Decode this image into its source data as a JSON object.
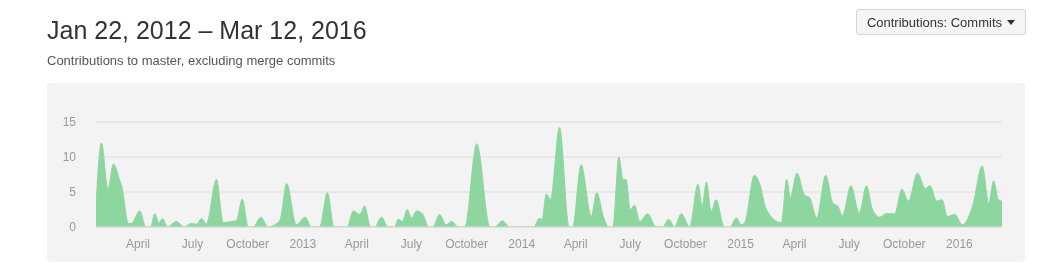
{
  "chart_data": {
    "type": "area",
    "title": "Jan 22, 2012 – Mar 12, 2016",
    "subtitle": "Contributions to master, excluding merge commits",
    "annotations": [
      "Contributions: Commits"
    ],
    "x": [
      "2012-01-22",
      "2012-01-31",
      "2012-02-11",
      "2012-02-20",
      "2012-03-01",
      "2012-03-05",
      "2012-03-16",
      "2012-03-21",
      "2012-04-04",
      "2012-04-14",
      "2012-04-22",
      "2012-04-29",
      "2012-05-06",
      "2012-05-12",
      "2012-05-20",
      "2012-06-04",
      "2012-06-17",
      "2012-06-29",
      "2012-07-08",
      "2012-07-16",
      "2012-07-24",
      "2012-08-10",
      "2012-08-21",
      "2012-09-04",
      "2012-09-12",
      "2012-09-22",
      "2012-10-02",
      "2012-10-10",
      "2012-10-23",
      "2012-11-04",
      "2012-11-15",
      "2012-11-24",
      "2012-12-05",
      "2012-12-21",
      "2013-01-05",
      "2013-01-15",
      "2013-01-29",
      "2013-02-11",
      "2013-02-22",
      "2013-03-16",
      "2013-03-26",
      "2013-04-06",
      "2013-04-14",
      "2013-04-24",
      "2013-05-01",
      "2013-05-12",
      "2013-05-23",
      "2013-06-03",
      "2013-06-09",
      "2013-06-16",
      "2013-06-24",
      "2013-07-01",
      "2013-07-10",
      "2013-07-20",
      "2013-07-30",
      "2013-08-06",
      "2013-08-17",
      "2013-08-28",
      "2013-09-06",
      "2013-09-17",
      "2013-09-28",
      "2013-10-18",
      "2013-11-09",
      "2013-11-17",
      "2013-11-30",
      "2013-12-11",
      "2014-01-21",
      "2014-01-30",
      "2014-02-04",
      "2014-02-11",
      "2014-02-18",
      "2014-03-05",
      "2014-03-21",
      "2014-03-27",
      "2014-04-10",
      "2014-04-27",
      "2014-05-06",
      "2014-05-18",
      "2014-05-26",
      "2014-06-02",
      "2014-06-12",
      "2014-06-19",
      "2014-06-24",
      "2014-07-01",
      "2014-07-08",
      "2014-07-17",
      "2014-07-30",
      "2014-08-13",
      "2014-08-24",
      "2014-09-03",
      "2014-09-13",
      "2014-09-24",
      "2014-10-08",
      "2014-10-22",
      "2014-10-29",
      "2014-11-05",
      "2014-11-13",
      "2014-11-21",
      "2014-12-05",
      "2014-12-14",
      "2014-12-25",
      "2015-01-02",
      "2015-01-08",
      "2015-01-24",
      "2015-02-02",
      "2015-02-13",
      "2015-03-10",
      "2015-03-19",
      "2015-03-25",
      "2015-04-05",
      "2015-04-18",
      "2015-04-26",
      "2015-05-08",
      "2015-05-23",
      "2015-06-04",
      "2015-06-12",
      "2015-06-20",
      "2015-07-04",
      "2015-07-18",
      "2015-07-30",
      "2015-08-09",
      "2015-08-21",
      "2015-09-01",
      "2015-09-15",
      "2015-09-27",
      "2015-10-08",
      "2015-10-23",
      "2015-11-05",
      "2015-11-13",
      "2015-11-24",
      "2015-12-03",
      "2015-12-12",
      "2015-12-24",
      "2016-01-06",
      "2016-01-23",
      "2016-02-08",
      "2016-02-19",
      "2016-02-27",
      "2016-03-06",
      "2016-03-12"
    ],
    "series": [
      {
        "color": "#8dd6a0",
        "values": [
          3,
          12,
          5.4,
          9,
          6.8,
          5.8,
          0.5,
          0.5,
          2.3,
          0,
          0,
          1.9,
          0.6,
          1.2,
          0,
          0.8,
          0,
          0.5,
          0.4,
          1.2,
          0.4,
          6.8,
          0.6,
          0.8,
          0.9,
          4,
          0,
          0,
          1.4,
          0,
          0.3,
          1,
          6.2,
          0.3,
          1.4,
          0,
          0,
          4.9,
          0,
          0,
          2.3,
          1.8,
          3,
          0,
          0,
          1.4,
          0,
          0,
          1.1,
          0.8,
          2.5,
          1.3,
          2.3,
          1.8,
          0,
          0,
          1.8,
          0.3,
          0.8,
          0,
          0,
          11.9,
          0,
          0,
          0.9,
          0,
          0,
          1.2,
          1.1,
          4.7,
          3.9,
          14.2,
          0,
          0,
          8.9,
          1.5,
          4.9,
          1.3,
          0,
          0,
          10,
          6.8,
          6.8,
          2.5,
          3.1,
          0.8,
          1.9,
          0,
          0,
          1.1,
          0,
          1.9,
          0,
          6.1,
          3,
          6.4,
          2.2,
          3.9,
          0,
          0,
          1.3,
          0.3,
          0.6,
          7.4,
          6.1,
          2.5,
          0.6,
          6.8,
          4.2,
          7.7,
          4.5,
          4.2,
          1.3,
          7.4,
          3.4,
          3,
          1.6,
          5.9,
          2,
          5.9,
          2.5,
          1.4,
          1.9,
          1.9,
          5.4,
          3.7,
          7.7,
          5.5,
          5.9,
          3.7,
          3.9,
          1.5,
          1.8,
          0.3,
          3,
          8.7,
          3.3,
          6.6,
          3.9,
          3.7
        ]
      }
    ],
    "xlim": [
      "2012-01-22",
      "2016-03-12"
    ],
    "xticks": [
      {
        "value": "2012-04-01",
        "label": "April"
      },
      {
        "value": "2012-07-01",
        "label": "July"
      },
      {
        "value": "2012-10-01",
        "label": "October"
      },
      {
        "value": "2013-01-01",
        "label": "2013"
      },
      {
        "value": "2013-04-01",
        "label": "April"
      },
      {
        "value": "2013-07-01",
        "label": "July"
      },
      {
        "value": "2013-10-01",
        "label": "October"
      },
      {
        "value": "2014-01-01",
        "label": "2014"
      },
      {
        "value": "2014-04-01",
        "label": "April"
      },
      {
        "value": "2014-07-01",
        "label": "July"
      },
      {
        "value": "2014-10-01",
        "label": "October"
      },
      {
        "value": "2015-01-01",
        "label": "2015"
      },
      {
        "value": "2015-04-01",
        "label": "April"
      },
      {
        "value": "2015-07-01",
        "label": "July"
      },
      {
        "value": "2015-10-01",
        "label": "October"
      },
      {
        "value": "2016-01-01",
        "label": "2016"
      }
    ],
    "ylim": [
      0,
      15
    ],
    "yticks": [
      0,
      5,
      10,
      15
    ],
    "grid": "y"
  }
}
